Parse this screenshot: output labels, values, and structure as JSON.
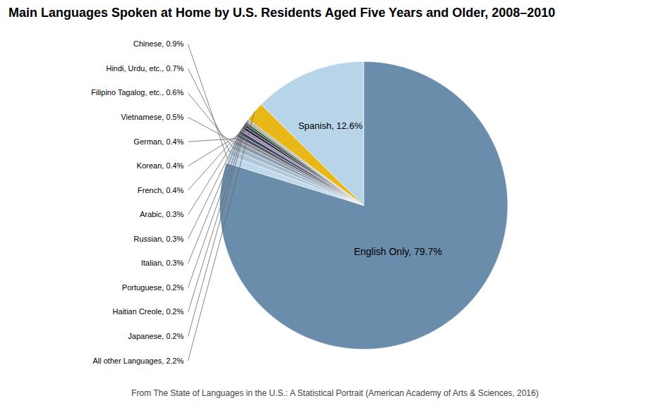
{
  "chart_data": {
    "type": "pie",
    "title": "Main Languages Spoken at Home by U.S. Residents Aged Five Years and Older, 2008–2010",
    "categories": [
      "English Only",
      "Chinese",
      "Hindi, Urdu, etc.",
      "Filipino Tagalog, etc.",
      "Vietnamese",
      "German",
      "Korean",
      "French",
      "Arabic",
      "Russian",
      "Italian",
      "Portuguese",
      "Haitian Creole",
      "Japanese",
      "All other Languages",
      "Spanish"
    ],
    "values": [
      79.7,
      0.9,
      0.7,
      0.6,
      0.5,
      0.4,
      0.4,
      0.4,
      0.3,
      0.3,
      0.3,
      0.2,
      0.2,
      0.2,
      2.2,
      12.6
    ],
    "colors": [
      "#6b8dac",
      "#c0d8ec",
      "#b0c8dc",
      "#a0b8cc",
      "#8899a8",
      "#888898",
      "#505868",
      "#384858",
      "#9878b0",
      "#202830",
      "#303840",
      "#283030",
      "#78b060",
      "#b0a0c8",
      "#e8b818",
      "#b8d4e8"
    ],
    "data_labels": true,
    "value_labels": [
      "English Only, 79.7%",
      "Chinese, 0.9%",
      "Hindi, Urdu, etc., 0.7%",
      "Filipino Tagalog, etc., 0.6%",
      "Vietnamese, 0.5%",
      "German, 0.4%",
      "Korean, 0.4%",
      "French, 0.4%",
      "Arabic, 0.3%",
      "Russian, 0.3%",
      "Italian, 0.3%",
      "Portuguese, 0.2%",
      "Haitian Creole, 0.2%",
      "Japanese, 0.2%",
      "All other Languages, 2.2%",
      "Spanish, 12.6%"
    ],
    "annotations": [
      "From The State of Languages in the U.S.: A Statistical Portrait (American Academy of Arts & Sciences, 2016)"
    ]
  }
}
